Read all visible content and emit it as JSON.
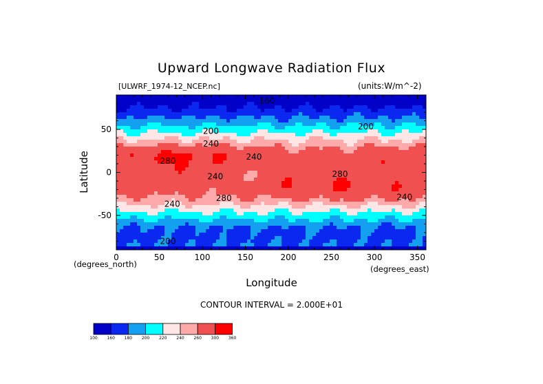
{
  "chart_data": {
    "type": "heatmap",
    "title": "Upward Longwave Radiation Flux",
    "file_label": "[ULWRF_1974-12_NCEP.nc]",
    "units_label": "(units:W/m^-2)",
    "xlabel": "Longitude",
    "ylabel": "Latitude",
    "x_origin_label": "(degrees_north)",
    "x_end_label": "(degrees_east)",
    "contour_interval_text": "CONTOUR INTERVAL = 2.000E+01",
    "xlim": [
      0,
      360
    ],
    "ylim": [
      -90,
      90
    ],
    "x_ticks": [
      0,
      50,
      100,
      150,
      200,
      250,
      300,
      350
    ],
    "y_ticks": [
      -50,
      0,
      50
    ],
    "contour_labels": [
      {
        "text": "160",
        "lon": 175,
        "lat": 80
      },
      {
        "text": "200",
        "lon": 110,
        "lat": 45
      },
      {
        "text": "200",
        "lon": 290,
        "lat": 50
      },
      {
        "text": "240",
        "lon": 110,
        "lat": 30
      },
      {
        "text": "280",
        "lon": 60,
        "lat": 10
      },
      {
        "text": "240",
        "lon": 160,
        "lat": 15
      },
      {
        "text": "240",
        "lon": 115,
        "lat": -8
      },
      {
        "text": "280",
        "lon": 260,
        "lat": -5
      },
      {
        "text": "280",
        "lon": 125,
        "lat": -33
      },
      {
        "text": "240",
        "lon": 65,
        "lat": -40
      },
      {
        "text": "240",
        "lon": 335,
        "lat": -32
      },
      {
        "text": "200",
        "lon": 60,
        "lat": -83
      }
    ],
    "colorbar": {
      "levels": [
        "100",
        "160",
        "180",
        "200",
        "220",
        "240",
        "260",
        "300",
        "360"
      ],
      "colors": [
        "#0000c8",
        "#0a28f0",
        "#14a0f0",
        "#00ffff",
        "#ffe6e6",
        "#ffaaaa",
        "#f05050",
        "#ff0000"
      ]
    },
    "legend_position": "bottom-left",
    "grid": false
  }
}
